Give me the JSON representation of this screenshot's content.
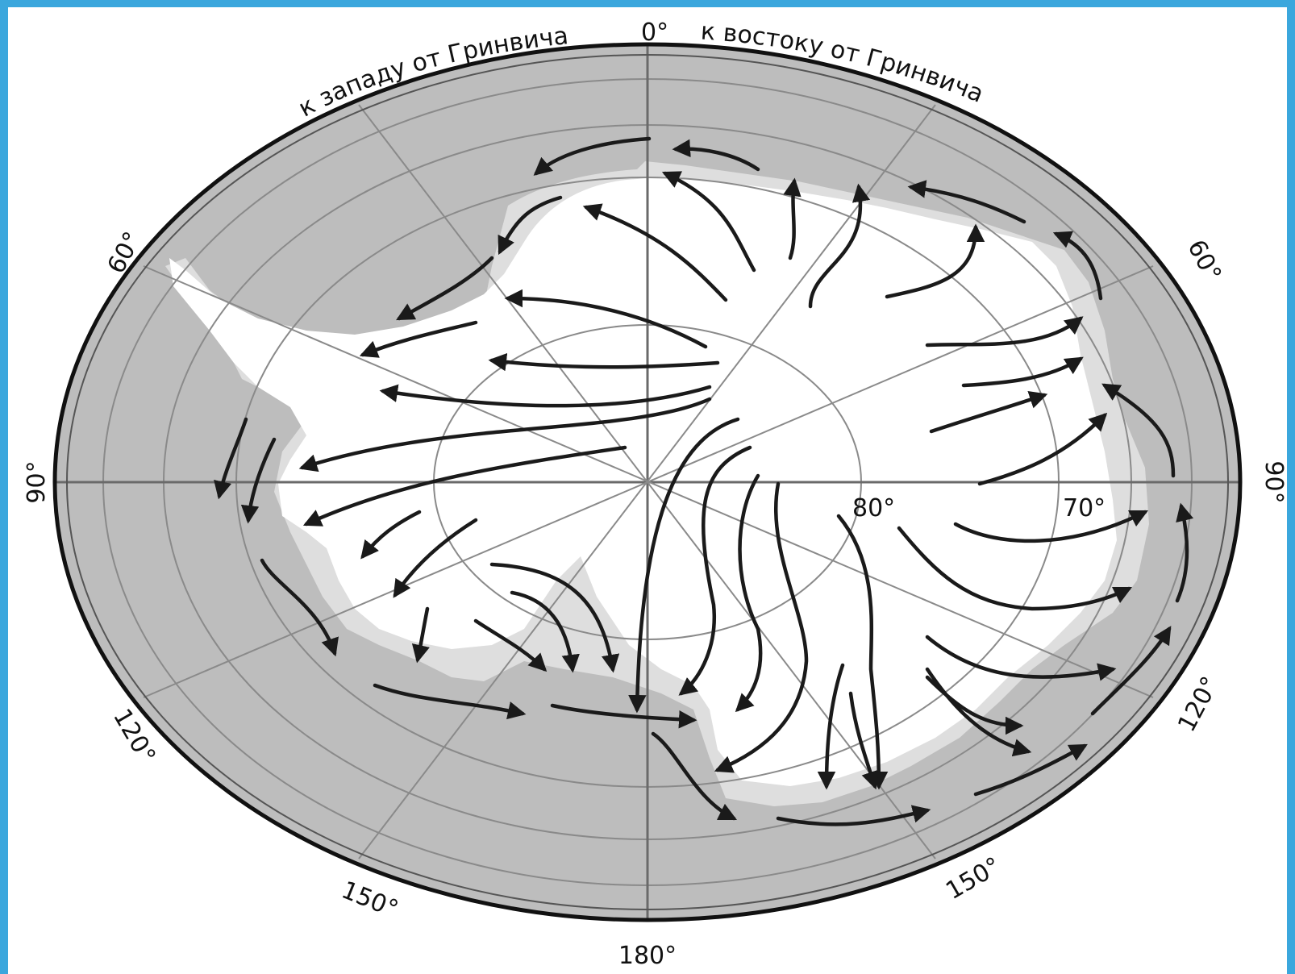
{
  "map": {
    "labels": {
      "west_of_greenwich": "к западу от Гринвича",
      "east_of_greenwich": "к востоку от Гринвича",
      "zero": "0°",
      "lon_180": "180°",
      "lon_90_w": "90°",
      "lon_90_e": "90°",
      "lon_60_w": "60°",
      "lon_60_e": "60°",
      "lon_120_w": "120°",
      "lon_120_e": "120°",
      "lon_150_w": "150°",
      "lon_150_e": "150°",
      "lat_80": "80°",
      "lat_70": "70°"
    },
    "colors": {
      "frame": "#3ba7dd",
      "ocean": "#bdbdbd",
      "ice_shelf": "#dedede",
      "land": "#ffffff",
      "grid": "#8a8a8a",
      "ink": "#1a1a1a"
    }
  }
}
